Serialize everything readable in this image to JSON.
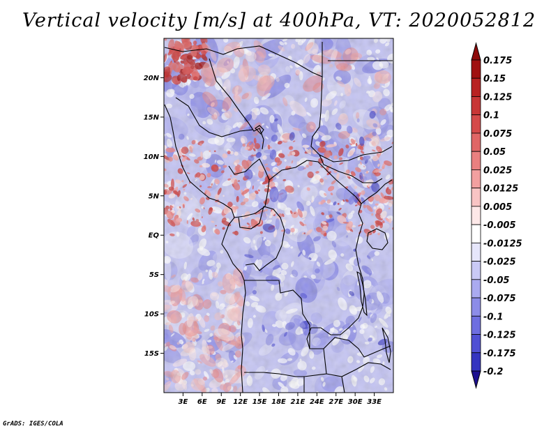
{
  "title": "Vertical velocity [m/s] at 400hPa, VT: 2020052812",
  "credit": "GrADS: IGES/COLA",
  "map": {
    "lon_range": [
      0,
      36
    ],
    "lat_range": [
      -20,
      25
    ],
    "lat_ticks": [
      {
        "value": 20,
        "label": "20N"
      },
      {
        "value": 15,
        "label": "15N"
      },
      {
        "value": 10,
        "label": "10N"
      },
      {
        "value": 5,
        "label": "5N"
      },
      {
        "value": 0,
        "label": "EQ"
      },
      {
        "value": -5,
        "label": "5S"
      },
      {
        "value": -10,
        "label": "10S"
      },
      {
        "value": -15,
        "label": "15S"
      }
    ],
    "lon_ticks": [
      {
        "value": 3,
        "label": "3E"
      },
      {
        "value": 6,
        "label": "6E"
      },
      {
        "value": 9,
        "label": "9E"
      },
      {
        "value": 12,
        "label": "12E"
      },
      {
        "value": 15,
        "label": "15E"
      },
      {
        "value": 18,
        "label": "18E"
      },
      {
        "value": 21,
        "label": "21E"
      },
      {
        "value": 24,
        "label": "24E"
      },
      {
        "value": 27,
        "label": "27E"
      },
      {
        "value": 30,
        "label": "30E"
      },
      {
        "value": 33,
        "label": "33E"
      }
    ]
  },
  "colorbar": {
    "levels": [
      {
        "label": "0.175",
        "color": "#a01010"
      },
      {
        "label": "0.15",
        "color": "#b82222"
      },
      {
        "label": "0.125",
        "color": "#c83636"
      },
      {
        "label": "0.1",
        "color": "#d54a4a"
      },
      {
        "label": "0.075",
        "color": "#e06666"
      },
      {
        "label": "0.05",
        "color": "#ea8080"
      },
      {
        "label": "0.025",
        "color": "#f2a0a0"
      },
      {
        "label": "0.0125",
        "color": "#f8c4c4"
      },
      {
        "label": "0.005",
        "color": "#fde8e8"
      },
      {
        "label": "-0.005",
        "color": "#ffffff"
      },
      {
        "label": "-0.0125",
        "color": "#e6e6fb"
      },
      {
        "label": "-0.025",
        "color": "#c9c9f5"
      },
      {
        "label": "-0.05",
        "color": "#aaaaf0"
      },
      {
        "label": "-0.075",
        "color": "#8c8ce8"
      },
      {
        "label": "-0.1",
        "color": "#6e6ee0"
      },
      {
        "label": "-0.125",
        "color": "#5050d4"
      },
      {
        "label": "-0.175",
        "color": "#3434c0"
      },
      {
        "label": "-0.2",
        "color": "#2020a4"
      }
    ],
    "top_color": "#8e0b0b",
    "bottom_color": "#1d1090"
  }
}
